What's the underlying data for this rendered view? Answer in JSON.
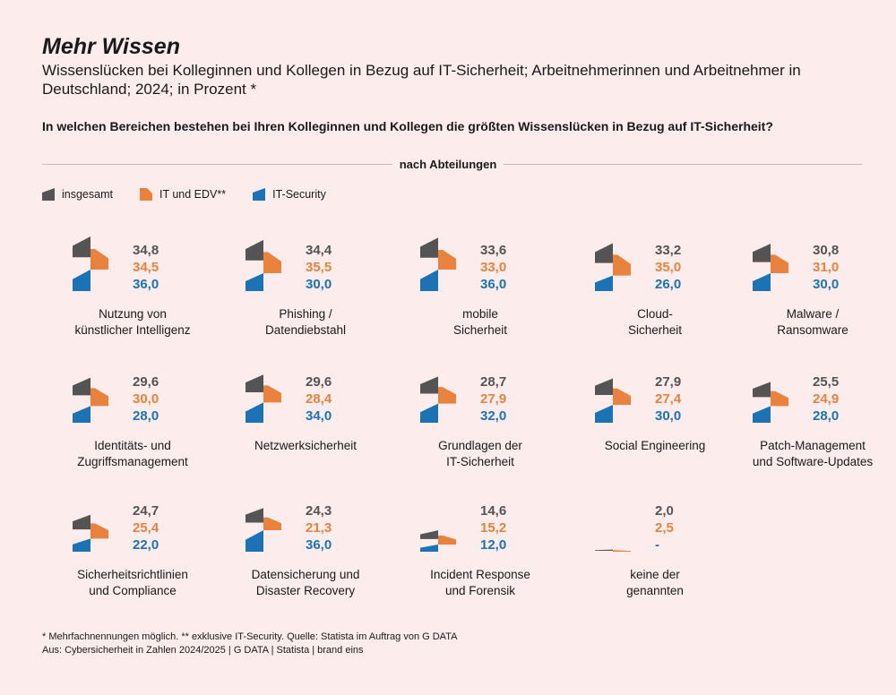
{
  "title": "Mehr Wissen",
  "subtitle": "Wissenslücken bei Kolleginnen und Kollegen in Bezug auf IT-Sicherheit; Arbeitnehmerinnen und Arbeitnehmer in Deutschland; 2024; in Prozent *",
  "question": "In welchen Bereichen bestehen bei Ihren Kolleginnen und Kollegen die größten Wissenslücken in Bezug auf IT-Sicherheit?",
  "section_label": "nach Abteilungen",
  "colors": {
    "insgesamt": "#545454",
    "it_edv": "#e8823d",
    "it_security": "#1b72b5",
    "background": "#fcecec"
  },
  "legend": [
    {
      "label": "insgesamt",
      "color": "#545454"
    },
    {
      "label": "IT und EDV**",
      "color": "#e8823d"
    },
    {
      "label": "IT-Security",
      "color": "#1b72b5"
    }
  ],
  "chart_data": {
    "type": "bar",
    "categories": [
      "Nutzung von künstlicher Intelligenz",
      "Phishing / Datendiebstahl",
      "mobile Sicherheit",
      "Cloud-Sicherheit",
      "Malware / Ransomware",
      "Identitäts- und Zugriffsmanagement",
      "Netzwerksicherheit",
      "Grundlagen der IT-Sicherheit",
      "Social Engineering",
      "Patch-Management und Software-Updates",
      "Sicherheitsrichtlinien und Compliance",
      "Datensicherung und Disaster Recovery",
      "Incident Response und Forensik",
      "keine der genannten"
    ],
    "series": [
      {
        "name": "insgesamt",
        "values": [
          34.8,
          34.4,
          33.6,
          33.2,
          30.8,
          29.6,
          29.6,
          28.7,
          27.9,
          25.5,
          24.7,
          24.3,
          14.6,
          2.0
        ]
      },
      {
        "name": "IT und EDV**",
        "values": [
          34.5,
          35.5,
          33.0,
          35.0,
          31.0,
          30.0,
          28.4,
          27.9,
          27.4,
          24.9,
          25.4,
          21.3,
          15.2,
          2.5
        ]
      },
      {
        "name": "IT-Security",
        "values": [
          36.0,
          30.0,
          36.0,
          26.0,
          30.0,
          28.0,
          34.0,
          32.0,
          30.0,
          28.0,
          22.0,
          36.0,
          12.0,
          null
        ]
      }
    ]
  },
  "items": [
    {
      "label1": "Nutzung von",
      "label2": "künstlicher Intelligenz",
      "v_ins": "34,8",
      "v_it": "34,5",
      "v_sec": "36,0"
    },
    {
      "label1": "Phishing /",
      "label2": "Datendiebstahl",
      "v_ins": "34,4",
      "v_it": "35,5",
      "v_sec": "30,0"
    },
    {
      "label1": "mobile",
      "label2": "Sicherheit",
      "v_ins": "33,6",
      "v_it": "33,0",
      "v_sec": "36,0"
    },
    {
      "label1": "Cloud-",
      "label2": "Sicherheit",
      "v_ins": "33,2",
      "v_it": "35,0",
      "v_sec": "26,0"
    },
    {
      "label1": "Malware /",
      "label2": "Ransomware",
      "v_ins": "30,8",
      "v_it": "31,0",
      "v_sec": "30,0"
    },
    {
      "label1": "Identitäts- und",
      "label2": "Zugriffsmanagement",
      "v_ins": "29,6",
      "v_it": "30,0",
      "v_sec": "28,0"
    },
    {
      "label1": "Netzwerksicherheit",
      "label2": "",
      "v_ins": "29,6",
      "v_it": "28,4",
      "v_sec": "34,0"
    },
    {
      "label1": "Grundlagen der",
      "label2": "IT-Sicherheit",
      "v_ins": "28,7",
      "v_it": "27,9",
      "v_sec": "32,0"
    },
    {
      "label1": "Social Engineering",
      "label2": "",
      "v_ins": "27,9",
      "v_it": "27,4",
      "v_sec": "30,0"
    },
    {
      "label1": "Patch-Management",
      "label2": "und Software-Updates",
      "v_ins": "25,5",
      "v_it": "24,9",
      "v_sec": "28,0"
    },
    {
      "label1": "Sicherheitsrichtlinien",
      "label2": "und Compliance",
      "v_ins": "24,7",
      "v_it": "25,4",
      "v_sec": "22,0"
    },
    {
      "label1": "Datensicherung und",
      "label2": "Disaster Recovery",
      "v_ins": "24,3",
      "v_it": "21,3",
      "v_sec": "36,0"
    },
    {
      "label1": "Incident Response",
      "label2": "und Forensik",
      "v_ins": "14,6",
      "v_it": "15,2",
      "v_sec": "12,0"
    },
    {
      "label1": "keine der",
      "label2": "genannten",
      "v_ins": "2,0",
      "v_it": "2,5",
      "v_sec": "-"
    }
  ],
  "footer": {
    "line1": "* Mehrfachnennungen möglich. ** exklusive IT-Security. Quelle: Statista im Auftrag von G DATA",
    "line2": "Aus: Cybersicherheit in Zahlen 2024/2025 | G DATA | Statista | brand eins"
  }
}
